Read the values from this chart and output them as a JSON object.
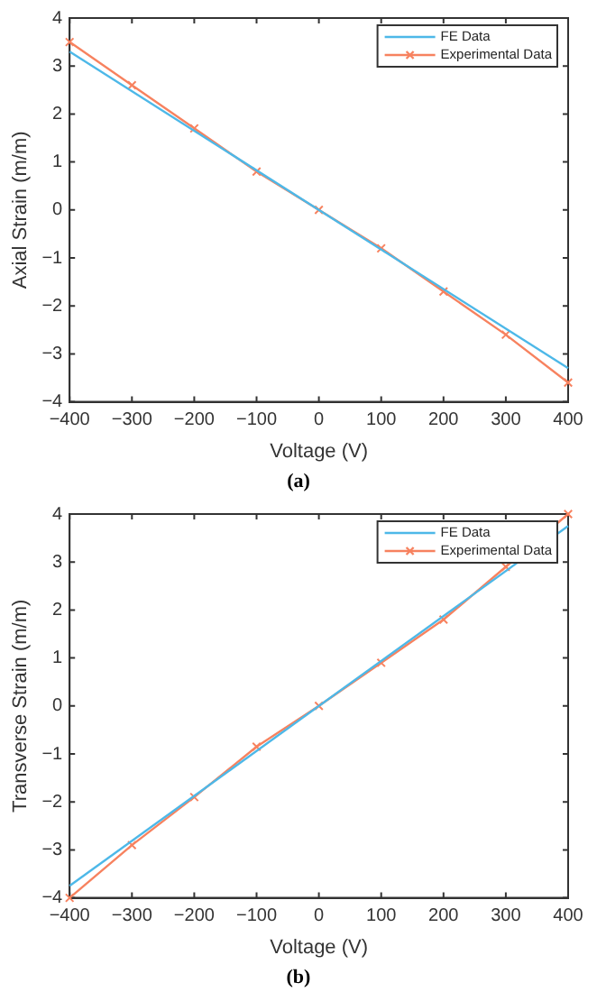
{
  "chart_data": [
    {
      "type": "line",
      "xlabel": "Voltage (V)",
      "ylabel": "Axial Strain (m/m)",
      "annotations": [
        "(a)"
      ],
      "xlim": [
        -400,
        400
      ],
      "xticks": [
        -400,
        -300,
        -200,
        -100,
        0,
        100,
        200,
        300,
        400
      ],
      "ylim": [
        -4,
        4
      ],
      "yticks": [
        -4,
        -3,
        -2,
        -1,
        0,
        1,
        2,
        3,
        4
      ],
      "grid": false,
      "legend": "top right",
      "series": [
        {
          "name": "FE Data",
          "color": "#4db8e8",
          "marker": "none",
          "x": [
            -400,
            400
          ],
          "values": [
            3.3,
            -3.3
          ]
        },
        {
          "name": "Experimental Data",
          "color": "#f7825f",
          "marker": "cross",
          "x": [
            -400,
            -300,
            -200,
            -100,
            0,
            100,
            200,
            300,
            400
          ],
          "values": [
            3.5,
            2.6,
            1.7,
            0.8,
            0,
            -0.8,
            -1.7,
            -2.6,
            -3.6
          ]
        }
      ]
    },
    {
      "type": "line",
      "xlabel": "Voltage (V)",
      "ylabel": "Transverse Strain (m/m)",
      "annotations": [
        "(b)"
      ],
      "xlim": [
        -400,
        400
      ],
      "xticks": [
        -400,
        -300,
        -200,
        -100,
        0,
        100,
        200,
        300,
        400
      ],
      "ylim": [
        -4,
        4
      ],
      "yticks": [
        -4,
        -3,
        -2,
        -1,
        0,
        1,
        2,
        3,
        4
      ],
      "grid": false,
      "legend": "top right",
      "series": [
        {
          "name": "FE Data",
          "color": "#4db8e8",
          "marker": "none",
          "x": [
            -400,
            400
          ],
          "values": [
            -3.75,
            3.75
          ]
        },
        {
          "name": "Experimental Data",
          "color": "#f7825f",
          "marker": "cross",
          "x": [
            -400,
            -300,
            -200,
            -100,
            0,
            100,
            200,
            300,
            400
          ],
          "values": [
            -4,
            -2.9,
            -1.9,
            -0.85,
            0,
            0.9,
            1.8,
            2.9,
            4
          ]
        }
      ]
    }
  ]
}
